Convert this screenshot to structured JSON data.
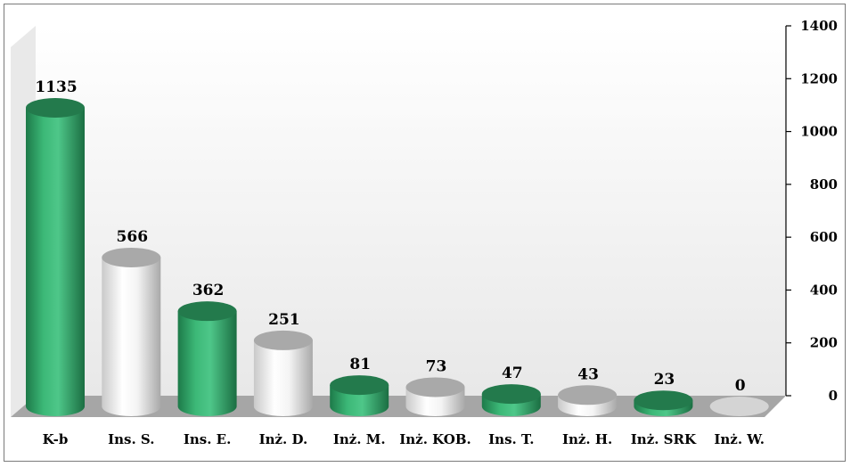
{
  "chart_data": {
    "type": "bar",
    "style": "3d-cylinder",
    "categories": [
      "K-b",
      "Ins. S.",
      "Ins. E.",
      "Inż. D.",
      "Inż. M.",
      "Inż. KOB.",
      "Ins. T.",
      "Inż. H.",
      "Inż. SRK",
      "Inż. W."
    ],
    "values": [
      1135,
      566,
      362,
      251,
      81,
      73,
      47,
      43,
      23,
      0
    ],
    "value_labels": [
      "1135",
      "566",
      "362",
      "251",
      "81",
      "73",
      "47",
      "43",
      "23",
      "0"
    ],
    "title": "",
    "xlabel": "",
    "ylabel": "",
    "ylim": [
      0,
      1400
    ],
    "yticks": [
      0,
      200,
      400,
      600,
      800,
      1000,
      1200,
      1400
    ],
    "ytick_labels": [
      "0",
      "200",
      "400",
      "600",
      "800",
      "1000",
      "1200",
      "1400"
    ],
    "y_axis_side": "right",
    "grid": false,
    "legend": "none",
    "colors": [
      "#2e9e63",
      "#e4e4e4",
      "#2e9e63",
      "#e4e4e4",
      "#2e9e63",
      "#e4e4e4",
      "#2e9e63",
      "#e4e4e4",
      "#2e9e63",
      "#e4e4e4"
    ],
    "wall_color": "#efefef",
    "floor_color": "#a6a6a6"
  }
}
